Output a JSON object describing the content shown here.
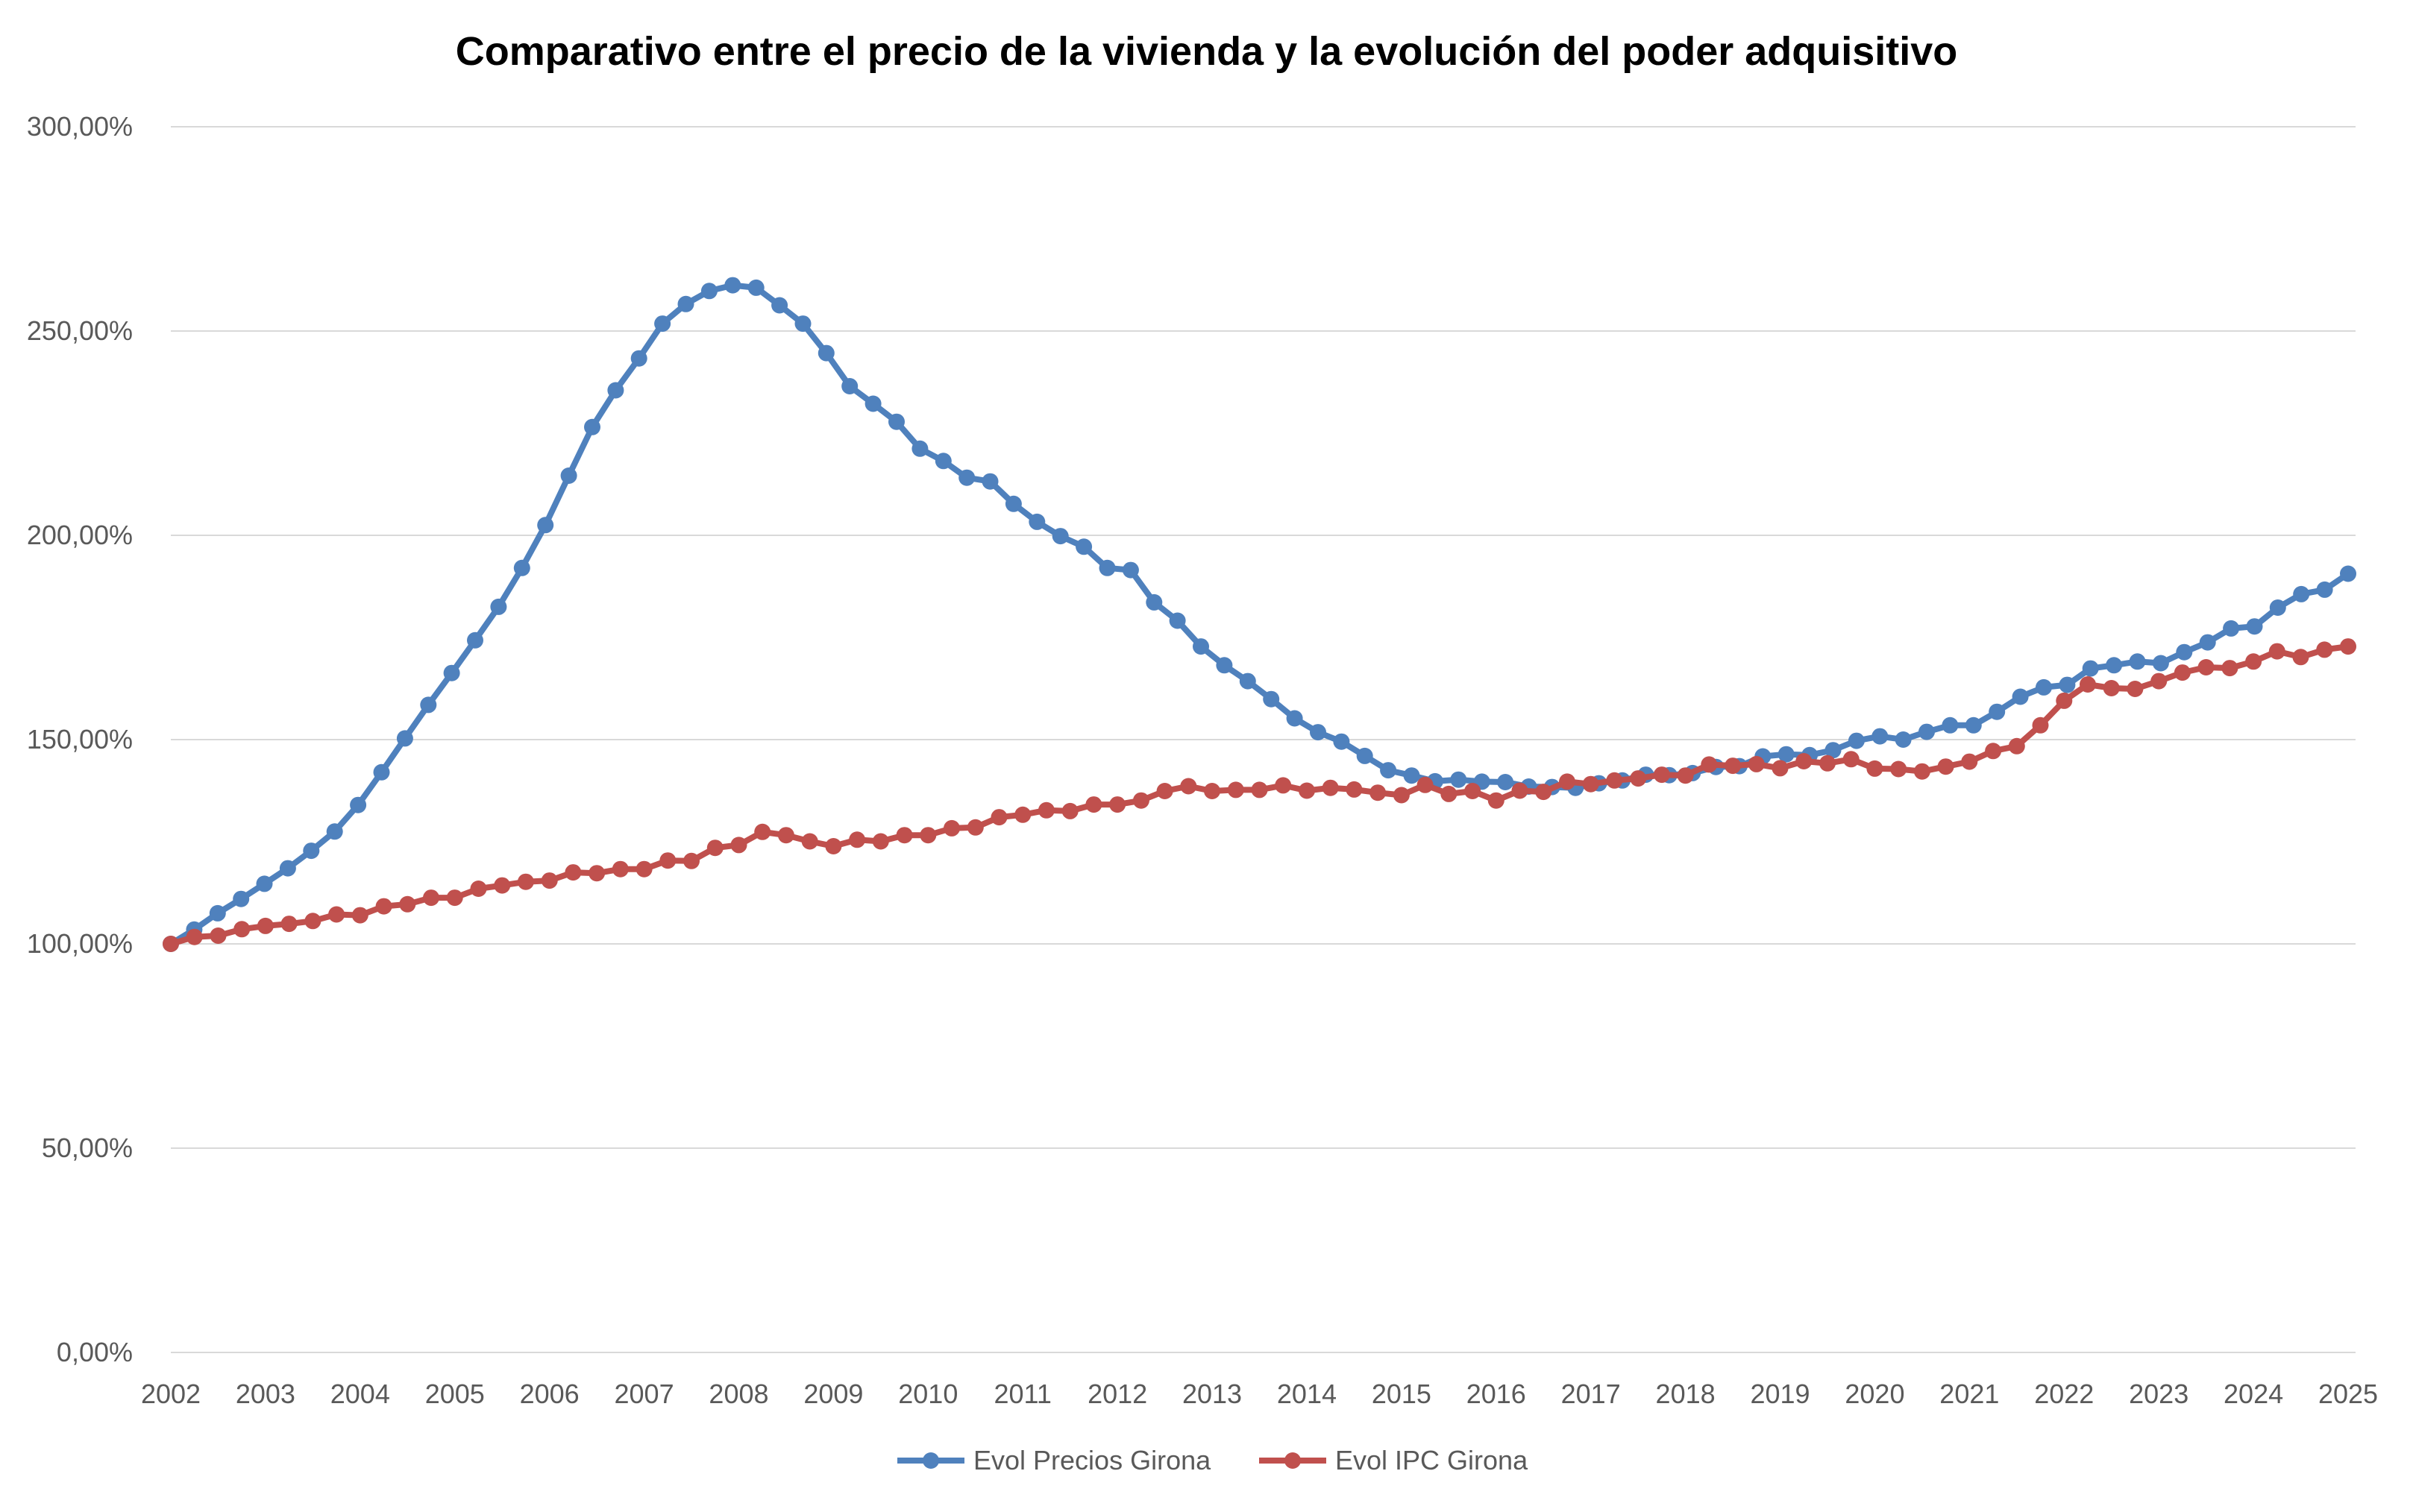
{
  "chart_data": {
    "type": "line",
    "title": "Comparativo entre el precio de la vivienda y la evolución del poder adquisitivo",
    "xlabel": "",
    "ylabel": "",
    "xlim": [
      2002,
      2025
    ],
    "ylim": [
      0,
      300
    ],
    "y_ticks": [
      0,
      50,
      100,
      150,
      200,
      250,
      300
    ],
    "y_tick_labels": [
      "0,00%",
      "50,00%",
      "100,00%",
      "150,00%",
      "200,00%",
      "250,00%",
      "300,00%"
    ],
    "x_ticks": [
      2002,
      2003,
      2004,
      2005,
      2006,
      2007,
      2008,
      2009,
      2010,
      2011,
      2012,
      2013,
      2014,
      2015,
      2016,
      2017,
      2018,
      2019,
      2020,
      2021,
      2022,
      2023,
      2024,
      2025
    ],
    "x_tick_labels": [
      "2002",
      "2003",
      "2004",
      "2005",
      "2006",
      "2007",
      "2008",
      "2009",
      "2010",
      "2011",
      "2012",
      "2013",
      "2014",
      "2015",
      "2016",
      "2017",
      "2018",
      "2019",
      "2020",
      "2021",
      "2022",
      "2023",
      "2024",
      "2025"
    ],
    "grid": true,
    "legend": "bottom",
    "series": [
      {
        "name": "Evol Precios Girona",
        "color": "#4F81BD",
        "values": [
          100,
          103.5,
          107.5,
          111,
          114.7,
          118.5,
          122.8,
          127.5,
          134,
          142,
          150.3,
          158.5,
          166.3,
          174.3,
          182.5,
          192,
          202.5,
          214.6,
          226.5,
          235.5,
          243.3,
          251.8,
          256.6,
          259.8,
          261.2,
          260.6,
          256.3,
          251.8,
          244.6,
          236.5,
          232.2,
          227.8,
          221.2,
          218.2,
          214.1,
          213.2,
          207.7,
          203.3,
          199.8,
          197.2,
          192,
          191.5,
          183.6,
          179.1,
          172.8,
          168.2,
          164.3,
          159.9,
          155.2,
          151.8,
          149.5,
          146,
          142.5,
          141.2,
          139.8,
          140.2,
          139.7,
          139.6,
          138.5,
          138.4,
          138.2,
          139.3,
          140,
          141.4,
          141.3,
          141.8,
          143.3,
          143.5,
          145.9,
          146.4,
          146.2,
          147.4,
          149.7,
          150.8,
          150,
          151.9,
          153.5,
          153.5,
          156.8,
          160.5,
          162.8,
          163.4,
          167.4,
          168.2,
          169.1,
          168.7,
          171.4,
          173.8,
          177.2,
          177.7,
          182.3,
          185.6,
          186.7,
          190.6
        ]
      },
      {
        "name": "Evol IPC Girona",
        "color": "#C0504D",
        "values": [
          100,
          101.7,
          102,
          103.6,
          104.4,
          104.9,
          105.6,
          107.2,
          107,
          109.2,
          109.7,
          111.3,
          111.3,
          113.5,
          114.3,
          115.2,
          115.5,
          117.5,
          117.3,
          118.3,
          118.3,
          120.4,
          120.3,
          123.5,
          124.2,
          127.4,
          126.6,
          125.1,
          123.9,
          125.5,
          125.1,
          126.6,
          126.6,
          128.3,
          128.5,
          131,
          131.6,
          132.7,
          132.5,
          134.1,
          134.1,
          135.1,
          137.4,
          138.6,
          137.4,
          137.7,
          137.7,
          138.8,
          137.5,
          138.2,
          137.8,
          137,
          136.4,
          138.9,
          136.7,
          137.4,
          135.1,
          137.5,
          137.2,
          139.7,
          139.1,
          140,
          140.5,
          141.4,
          141.2,
          143.9,
          143.6,
          144,
          143,
          144.7,
          144.2,
          145.2,
          142.9,
          142.8,
          142.2,
          143.4,
          144.6,
          147.2,
          148.4,
          153.5,
          159.5,
          163.5,
          162.6,
          162.4,
          164.3,
          166.4,
          167.7,
          167.5,
          169.1,
          171.6,
          170.2,
          172,
          172.8
        ]
      }
    ]
  }
}
